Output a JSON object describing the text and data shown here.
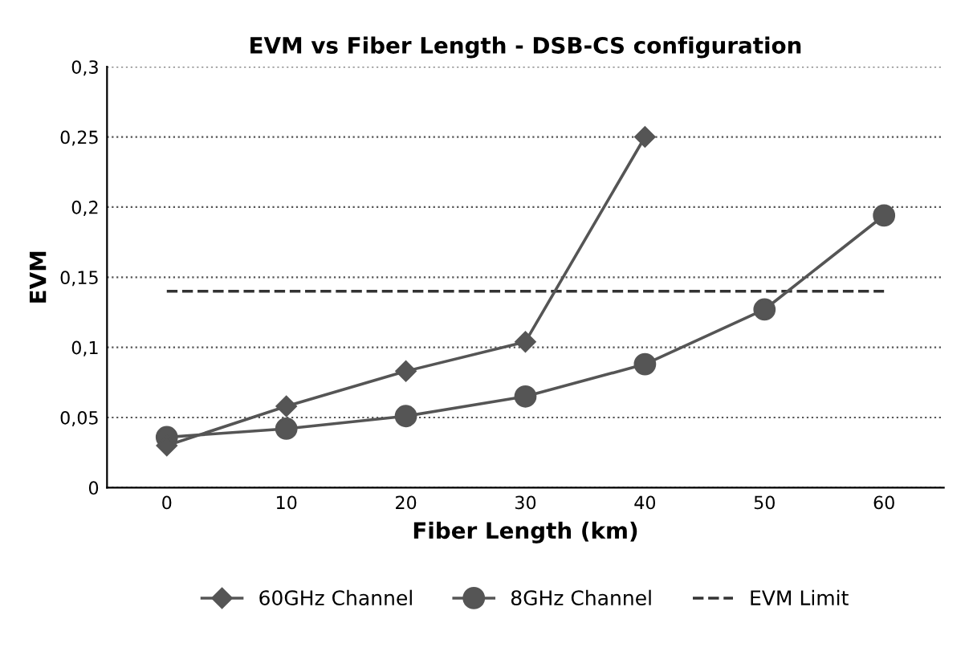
{
  "chart_data": {
    "type": "line",
    "title": "EVM vs Fiber Length - DSB-CS configuration",
    "xlabel": "Fiber Length (km)",
    "ylabel": "EVM",
    "categories": [
      "0",
      "10",
      "20",
      "30",
      "40",
      "50",
      "60"
    ],
    "series": [
      {
        "name": "60GHz Channel",
        "color": "#555555",
        "marker": "diamond",
        "line_style": "solid",
        "values": [
          0.03,
          0.058,
          0.083,
          0.104,
          0.25,
          null,
          null
        ]
      },
      {
        "name": "8GHz Channel",
        "color": "#555555",
        "marker": "circle",
        "line_style": "solid",
        "values": [
          0.036,
          0.042,
          0.051,
          0.065,
          0.088,
          0.127,
          0.194
        ]
      },
      {
        "name": "EVM Limit",
        "color": "#333333",
        "marker": "none",
        "line_style": "dashed",
        "values": [
          0.14,
          0.14,
          0.14,
          0.14,
          0.14,
          0.14,
          0.14
        ]
      }
    ],
    "ylim": [
      0,
      0.3
    ],
    "yticks": [
      {
        "value": 0,
        "label": "0"
      },
      {
        "value": 0.05,
        "label": "0,05"
      },
      {
        "value": 0.1,
        "label": "0,1"
      },
      {
        "value": 0.15,
        "label": "0,15"
      },
      {
        "value": 0.2,
        "label": "0,2"
      },
      {
        "value": 0.25,
        "label": "0,25"
      },
      {
        "value": 0.3,
        "label": "0,3"
      }
    ],
    "grid": "y",
    "legend": "bottom"
  }
}
